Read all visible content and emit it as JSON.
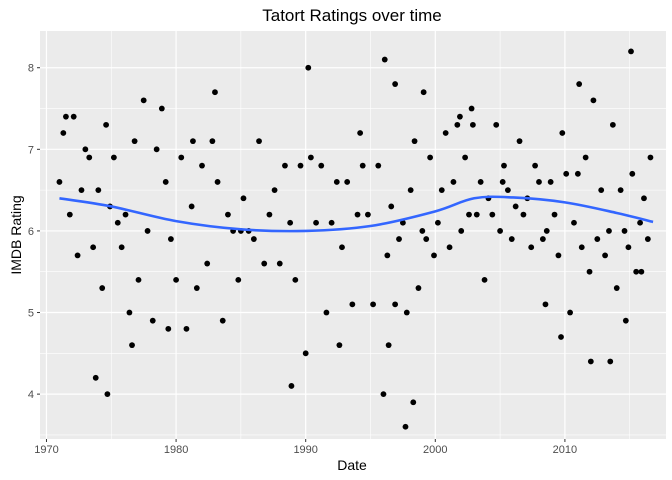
{
  "chart_data": {
    "type": "scatter",
    "title": "Tatort Ratings over time",
    "xlabel": "Date",
    "ylabel": "IMDB Rating",
    "xlim": [
      1969.5,
      2017.8
    ],
    "ylim": [
      3.45,
      8.45
    ],
    "x_ticks": [
      1970,
      1980,
      1990,
      2000,
      2010
    ],
    "x_tick_labels": [
      "1970",
      "1980",
      "1990",
      "2000",
      "2010"
    ],
    "y_ticks": [
      4,
      5,
      6,
      7,
      8
    ],
    "y_tick_labels": [
      "4",
      "5",
      "6",
      "7",
      "8"
    ],
    "grid": true,
    "legend": "none",
    "colors": {
      "panel": "#ebebeb",
      "grid": "#ffffff",
      "points": "#000000",
      "trend": "#3366ff"
    },
    "trend": {
      "name": "",
      "x": [
        1971,
        1975,
        1980,
        1985,
        1990,
        1995,
        2000,
        2003,
        2006,
        2010,
        2014,
        2016.8
      ],
      "y": [
        6.4,
        6.3,
        6.12,
        6.02,
        6.0,
        6.06,
        6.24,
        6.4,
        6.41,
        6.35,
        6.22,
        6.11
      ]
    },
    "points": {
      "x": [
        1971,
        1971.3,
        1971.5,
        1971.8,
        1972.1,
        1972.4,
        1972.7,
        1973.0,
        1973.3,
        1973.6,
        1974.0,
        1974.3,
        1974.6,
        1974.9,
        1975.2,
        1975.5,
        1975.8,
        1976.1,
        1976.4,
        1976.8,
        1977.1,
        1977.5,
        1977.8,
        1978.2,
        1978.5,
        1978.9,
        1979.2,
        1979.6,
        1980.0,
        1980.4,
        1980.8,
        1981.2,
        1981.6,
        1982.0,
        1982.4,
        1982.8,
        1983.2,
        1983.6,
        1984.0,
        1984.4,
        1984.8,
        1985.2,
        1985.6,
        1986.0,
        1986.4,
        1986.8,
        1987.2,
        1987.6,
        1988.0,
        1988.4,
        1988.8,
        1989.2,
        1989.6,
        1990.0,
        1990.4,
        1990.8,
        1991.2,
        1991.6,
        1992.0,
        1992.4,
        1992.8,
        1993.2,
        1993.6,
        1994.0,
        1994.4,
        1994.8,
        1995.2,
        1995.6,
        1996.0,
        1996.3,
        1996.6,
        1996.9,
        1997.2,
        1997.5,
        1997.8,
        1998.1,
        1998.4,
        1998.7,
        1999.0,
        1999.3,
        1999.6,
        1999.9,
        2000.2,
        2000.5,
        2000.8,
        2001.1,
        2001.4,
        2001.7,
        2002.0,
        2002.3,
        2002.6,
        2002.9,
        2003.2,
        2003.5,
        2003.8,
        2004.1,
        2004.4,
        2004.7,
        2005.0,
        2005.3,
        2005.6,
        2005.9,
        2006.2,
        2006.5,
        2006.8,
        2007.1,
        2007.4,
        2007.7,
        2008.0,
        2008.3,
        2008.6,
        2008.9,
        2009.2,
        2009.5,
        2009.8,
        2010.1,
        2010.4,
        2010.7,
        2011.0,
        2011.3,
        2011.6,
        2011.9,
        2012.2,
        2012.5,
        2012.8,
        2013.1,
        2013.4,
        2013.7,
        2014.0,
        2014.3,
        2014.6,
        2014.9,
        2015.2,
        2015.5,
        2015.8,
        2016.1,
        2016.4,
        1973.8,
        1974.7,
        1976.6,
        1983.0,
        1988.9,
        1996.1,
        1996.9,
        1998.3,
        2001.9,
        2011.1,
        2013.5,
        2014.7,
        2015.1,
        1979.4,
        1985.0,
        1992.6,
        1996.4,
        1997.7,
        1999.1,
        2005.2,
        2008.5,
        2012.0,
        2015.9,
        1981.3,
        1990.2,
        1994.2,
        2002.8,
        2009.7,
        2016.6
      ],
      "y": [
        6.6,
        7.2,
        7.4,
        6.2,
        7.4,
        5.7,
        6.5,
        7.0,
        6.9,
        5.8,
        6.5,
        5.3,
        7.3,
        6.3,
        6.9,
        6.1,
        5.8,
        6.2,
        5.0,
        7.1,
        5.4,
        7.6,
        6.0,
        4.9,
        7.0,
        7.5,
        6.6,
        5.9,
        5.4,
        6.9,
        4.8,
        6.3,
        5.3,
        6.8,
        5.6,
        7.1,
        6.6,
        4.9,
        6.2,
        6.0,
        5.4,
        6.4,
        6.0,
        5.9,
        7.1,
        5.6,
        6.2,
        6.5,
        5.6,
        6.8,
        6.1,
        5.4,
        6.8,
        4.5,
        6.9,
        6.1,
        6.8,
        5.0,
        6.1,
        6.6,
        5.8,
        6.6,
        5.1,
        6.2,
        6.8,
        6.2,
        5.1,
        6.8,
        4.0,
        5.7,
        6.3,
        5.1,
        5.9,
        6.1,
        5.0,
        6.5,
        7.1,
        5.3,
        6.0,
        5.9,
        6.9,
        5.7,
        6.1,
        6.5,
        7.2,
        5.8,
        6.6,
        7.3,
        6.0,
        6.9,
        6.2,
        7.3,
        6.2,
        6.6,
        5.4,
        6.4,
        6.2,
        7.3,
        6.0,
        6.8,
        6.5,
        5.9,
        6.3,
        7.1,
        6.2,
        6.4,
        5.8,
        6.8,
        6.6,
        5.9,
        6.0,
        6.6,
        6.2,
        5.7,
        7.2,
        6.7,
        5.0,
        6.1,
        6.7,
        5.8,
        6.9,
        5.5,
        7.6,
        5.9,
        6.5,
        5.7,
        6.0,
        7.3,
        5.3,
        6.5,
        6.0,
        5.8,
        6.7,
        5.5,
        6.1,
        6.4,
        5.9,
        4.2,
        4.0,
        4.6,
        7.7,
        4.1,
        8.1,
        7.8,
        3.9,
        7.4,
        7.8,
        4.4,
        4.9,
        8.2,
        4.8,
        6.0,
        4.6,
        4.6,
        3.6,
        7.7,
        6.6,
        5.1,
        4.4,
        5.5,
        7.1,
        8.0,
        7.2,
        7.5,
        4.7,
        6.9
      ]
    }
  }
}
